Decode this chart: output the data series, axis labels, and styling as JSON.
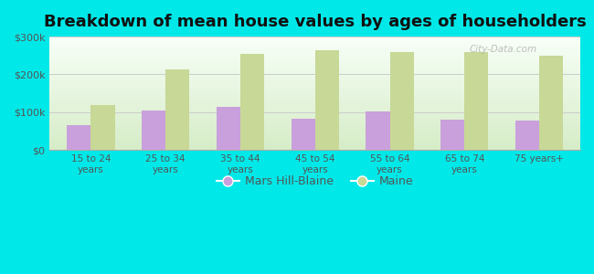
{
  "title": "Breakdown of mean house values by ages of householders",
  "categories": [
    "15 to 24\nyears",
    "25 to 34\nyears",
    "35 to 44\nyears",
    "45 to 54\nyears",
    "55 to 64\nyears",
    "65 to 74\nyears",
    "75 years+"
  ],
  "mars_hill_blaine": [
    65000,
    105000,
    115000,
    83000,
    103000,
    80000,
    78000
  ],
  "maine": [
    118000,
    213000,
    255000,
    263000,
    258000,
    260000,
    250000
  ],
  "mars_color": "#c9a0dc",
  "maine_color": "#c8d896",
  "background_color": "#00e8e8",
  "grad_top": "#d6edc8",
  "grad_bottom": "#f8fff8",
  "ylim": [
    0,
    300000
  ],
  "yticks": [
    0,
    100000,
    200000,
    300000
  ],
  "ytick_labels": [
    "$0",
    "$100k",
    "$200k",
    "$300k"
  ],
  "legend_labels": [
    "Mars Hill-Blaine",
    "Maine"
  ],
  "bar_width": 0.32,
  "title_fontsize": 13,
  "watermark": "City-Data.com"
}
